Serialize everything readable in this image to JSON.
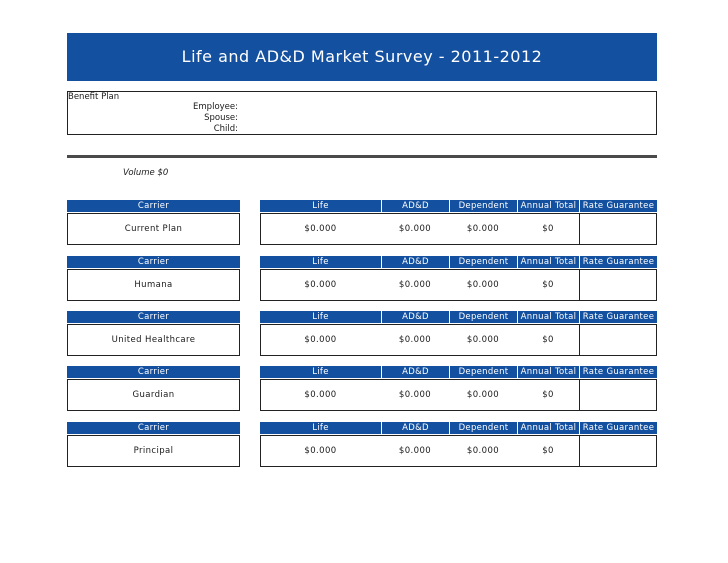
{
  "title": "Life and AD&D Market Survey - 2011-2012",
  "benefit_plan": {
    "label": "Benefit Plan",
    "employee": "Employee:",
    "spouse": "Spouse:",
    "child": "Child:"
  },
  "volume": "Volume $0",
  "headers": {
    "carrier": "Carrier",
    "life": "Life",
    "add": "AD&D",
    "dependent": "Dependent",
    "annual_total": "Annual Total",
    "rate_guarantee": "Rate Guarantee"
  },
  "carriers": [
    {
      "name": "Current Plan",
      "life": "$0.000",
      "add": "$0.000",
      "dependent": "$0.000",
      "annual_total": "$0",
      "rate_guarantee": ""
    },
    {
      "name": "Humana",
      "life": "$0.000",
      "add": "$0.000",
      "dependent": "$0.000",
      "annual_total": "$0",
      "rate_guarantee": ""
    },
    {
      "name": "United Healthcare",
      "life": "$0.000",
      "add": "$0.000",
      "dependent": "$0.000",
      "annual_total": "$0",
      "rate_guarantee": ""
    },
    {
      "name": "Guardian",
      "life": "$0.000",
      "add": "$0.000",
      "dependent": "$0.000",
      "annual_total": "$0",
      "rate_guarantee": ""
    },
    {
      "name": "Principal",
      "life": "$0.000",
      "add": "$0.000",
      "dependent": "$0.000",
      "annual_total": "$0",
      "rate_guarantee": ""
    }
  ],
  "colors": {
    "header_blue": "#1450a0",
    "border": "#222222"
  }
}
